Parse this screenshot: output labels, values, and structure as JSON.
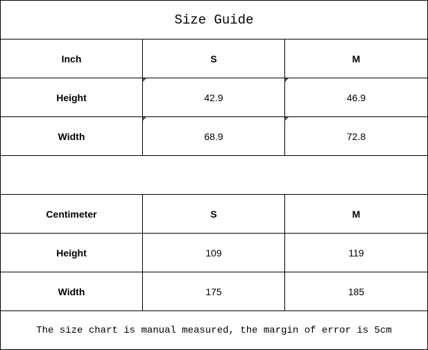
{
  "title": "Size Guide",
  "inch_table": {
    "header": [
      "Inch",
      "S",
      "M"
    ],
    "rows": [
      {
        "label": "Height",
        "values": [
          "42.9",
          "46.9"
        ]
      },
      {
        "label": "Width",
        "values": [
          "68.9",
          "72.8"
        ]
      }
    ]
  },
  "cm_table": {
    "header": [
      "Centimeter",
      "S",
      "M"
    ],
    "rows": [
      {
        "label": "Height",
        "values": [
          "109",
          "119"
        ]
      },
      {
        "label": "Width",
        "values": [
          "175",
          "185"
        ]
      }
    ]
  },
  "note": "The size chart is manual measured, the margin of error is 5cm",
  "colors": {
    "cell_marker": "#1a7f1a"
  }
}
